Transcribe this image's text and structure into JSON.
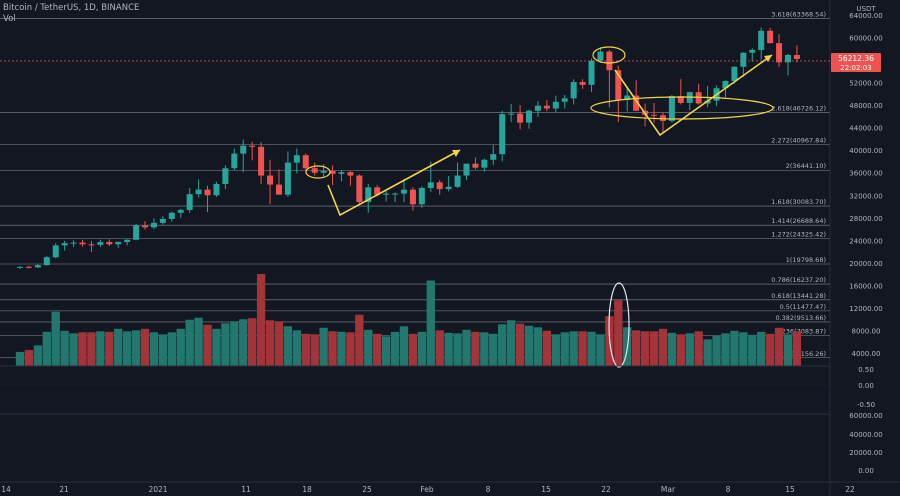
{
  "header": {
    "title": "Bitcoin / TetherUS, 1D, BINANCE",
    "volume_label": "Vol",
    "currency": "USDT"
  },
  "price": {
    "last": "56212.36",
    "countdown": "22:02:03"
  },
  "colors": {
    "background": "#131722",
    "up": "#26a69a",
    "down": "#ef5350",
    "fib_line": "#9598a1",
    "annotation": "#f5d445",
    "volume_up": "#22786f",
    "volume_down": "#a3353a"
  },
  "chart_data": {
    "type": "candlestick",
    "title": "Bitcoin / TetherUS, 1D, BINANCE",
    "x_tick_labels": [
      "14",
      "21",
      "2021",
      "11",
      "18",
      "25",
      "Feb",
      "8",
      "15",
      "22",
      "Mar",
      "8",
      "15",
      "22"
    ],
    "price_axis": {
      "ticks": [
        4000,
        8000,
        12000,
        16000,
        20000,
        24000,
        28000,
        32000,
        36000,
        40000,
        44000,
        48000,
        52000,
        60000,
        64000
      ],
      "tick_labels": [
        "4000.00",
        "8000.00",
        "12000.00",
        "16000.00",
        "20000.00",
        "24000.00",
        "28000.00",
        "32000.00",
        "36000.00",
        "40000.00",
        "44000.00",
        "48000.00",
        "52000.00",
        "60000.00",
        "64000.00"
      ],
      "range": [
        2500,
        65500
      ],
      "grid": false
    },
    "fib_levels": [
      {
        "ratio": "3.618",
        "value": 63368.54
      },
      {
        "ratio": "2.618",
        "value": 46726.12
      },
      {
        "ratio": "2.272",
        "value": 40967.84
      },
      {
        "ratio": "2",
        "value": 36441.1
      },
      {
        "ratio": "1.618",
        "value": 30083.7
      },
      {
        "ratio": "1.414",
        "value": 26688.64
      },
      {
        "ratio": "1.272",
        "value": 24325.42
      },
      {
        "ratio": "1",
        "value": 19798.68
      },
      {
        "ratio": "0.786",
        "value": 16237.2
      },
      {
        "ratio": "0.618",
        "value": 13441.28
      },
      {
        "ratio": "0.5",
        "value": 11477.47
      },
      {
        "ratio": "0.382",
        "value": 9513.66
      },
      {
        "ratio": "0.236",
        "value": 7083.87
      },
      {
        "ratio": "0",
        "value": 3156.26
      }
    ],
    "candles": [
      [
        19150,
        19400,
        18900,
        19300
      ],
      [
        19300,
        19500,
        19000,
        19200
      ],
      [
        19200,
        19800,
        19100,
        19600
      ],
      [
        19600,
        21200,
        19500,
        21000
      ],
      [
        21000,
        23500,
        20800,
        23100
      ],
      [
        23100,
        23900,
        22200,
        23500
      ],
      [
        23500,
        24000,
        22800,
        23600
      ],
      [
        23600,
        24100,
        22900,
        23300
      ],
      [
        23300,
        23900,
        21900,
        23200
      ],
      [
        23200,
        24100,
        22800,
        23700
      ],
      [
        23700,
        24200,
        23000,
        23300
      ],
      [
        23300,
        23800,
        22700,
        23700
      ],
      [
        23700,
        24200,
        23100,
        24100
      ],
      [
        24100,
        26900,
        24000,
        26600
      ],
      [
        26600,
        27400,
        25900,
        26300
      ],
      [
        26300,
        27900,
        26000,
        27100
      ],
      [
        27100,
        28300,
        26800,
        27800
      ],
      [
        27800,
        29100,
        27300,
        28900
      ],
      [
        28900,
        29600,
        28000,
        29400
      ],
      [
        29400,
        33300,
        28900,
        32200
      ],
      [
        32200,
        34800,
        31600,
        33000
      ],
      [
        33000,
        33700,
        29000,
        32000
      ],
      [
        32000,
        34400,
        31700,
        34000
      ],
      [
        34000,
        37300,
        33100,
        36800
      ],
      [
        36800,
        40300,
        36400,
        39400
      ],
      [
        39400,
        41900,
        36100,
        40800
      ],
      [
        40800,
        41500,
        38200,
        40600
      ],
      [
        40600,
        41400,
        34000,
        35500
      ],
      [
        35500,
        38300,
        30400,
        33900
      ],
      [
        33900,
        36600,
        32500,
        32100
      ],
      [
        32100,
        39800,
        31700,
        37800
      ],
      [
        37800,
        40300,
        35900,
        39100
      ],
      [
        39100,
        39400,
        36300,
        36800
      ],
      [
        36800,
        37800,
        35500,
        36000
      ],
      [
        36000,
        37500,
        35300,
        36300
      ],
      [
        36300,
        37300,
        33800,
        35800
      ],
      [
        35800,
        36500,
        34500,
        36100
      ],
      [
        36100,
        36300,
        33700,
        35500
      ],
      [
        35500,
        35700,
        30300,
        30800
      ],
      [
        30800,
        34000,
        28900,
        33400
      ],
      [
        33400,
        33800,
        31800,
        32100
      ],
      [
        32100,
        33000,
        30900,
        32300
      ],
      [
        32300,
        32500,
        30800,
        32300
      ],
      [
        32300,
        34900,
        30800,
        33000
      ],
      [
        33000,
        33400,
        29300,
        30400
      ],
      [
        30400,
        33600,
        29800,
        33300
      ],
      [
        33300,
        38000,
        32600,
        34300
      ],
      [
        34300,
        34700,
        32100,
        33100
      ],
      [
        33100,
        35400,
        32700,
        33500
      ],
      [
        33500,
        37800,
        33300,
        35500
      ],
      [
        35500,
        37600,
        34700,
        37600
      ],
      [
        37600,
        38700,
        36600,
        36900
      ],
      [
        36900,
        38500,
        36200,
        38300
      ],
      [
        38300,
        40900,
        37400,
        39300
      ],
      [
        39300,
        47000,
        38000,
        46400
      ],
      [
        46400,
        48200,
        45000,
        46500
      ],
      [
        46500,
        48000,
        43700,
        44900
      ],
      [
        44900,
        47200,
        43800,
        47000
      ],
      [
        47000,
        48700,
        45900,
        47900
      ],
      [
        47900,
        48900,
        46900,
        47400
      ],
      [
        47400,
        49700,
        46800,
        48600
      ],
      [
        48600,
        49800,
        47400,
        49200
      ],
      [
        49200,
        52600,
        48100,
        52100
      ],
      [
        52100,
        52600,
        50900,
        51600
      ],
      [
        51600,
        56300,
        50300,
        55900
      ],
      [
        55900,
        58300,
        55500,
        57500
      ],
      [
        57500,
        57800,
        47600,
        54200
      ],
      [
        54200,
        55000,
        45000,
        48900
      ],
      [
        48900,
        51300,
        46900,
        49700
      ],
      [
        49700,
        52400,
        47000,
        47000
      ],
      [
        47000,
        48300,
        44200,
        46300
      ],
      [
        46300,
        48400,
        44900,
        46200
      ],
      [
        46200,
        46600,
        43000,
        45200
      ],
      [
        45200,
        49800,
        44900,
        49600
      ],
      [
        49600,
        52600,
        48100,
        48400
      ],
      [
        48400,
        50400,
        47100,
        50300
      ],
      [
        50300,
        51800,
        48100,
        48300
      ],
      [
        48300,
        51400,
        47600,
        48800
      ],
      [
        48800,
        51500,
        47800,
        51000
      ],
      [
        51000,
        52400,
        49400,
        52300
      ],
      [
        52300,
        54900,
        51800,
        54800
      ],
      [
        54800,
        57400,
        53000,
        57300
      ],
      [
        57300,
        58100,
        55800,
        57800
      ],
      [
        57800,
        61800,
        56100,
        61200
      ],
      [
        61200,
        61700,
        59000,
        59000
      ],
      [
        59000,
        60600,
        54800,
        55600
      ],
      [
        55600,
        57100,
        53300,
        56900
      ],
      [
        56900,
        58600,
        55600,
        56200
      ]
    ],
    "volume_axis": {
      "ticks": [
        4000,
        8000,
        12000,
        16000
      ],
      "tick_labels": [
        "4000.00",
        "8000.00",
        "12000.00",
        "16000.00"
      ],
      "range": [
        0,
        20000
      ]
    },
    "volume": [
      2800,
      3200,
      4100,
      6800,
      10800,
      7000,
      6500,
      6700,
      6700,
      6900,
      6800,
      7400,
      6900,
      7100,
      7400,
      6700,
      6300,
      6700,
      7400,
      9200,
      9600,
      8200,
      7400,
      8500,
      8900,
      9300,
      9500,
      18300,
      9100,
      8900,
      7900,
      7100,
      6400,
      6300,
      7600,
      6900,
      6800,
      6700,
      10200,
      7200,
      6400,
      5900,
      6800,
      7900,
      6400,
      6800,
      17000,
      7100,
      6600,
      6500,
      7200,
      6800,
      6700,
      6400,
      8300,
      9100,
      8400,
      8000,
      7700,
      7000,
      6300,
      6700,
      6900,
      6900,
      6800,
      6300,
      9900,
      13100,
      7700,
      7100,
      6900,
      6900,
      7400,
      6600,
      6300,
      6500,
      6900,
      5300,
      6100,
      6500,
      7000,
      6700,
      6200,
      6800,
      6400,
      7600,
      6300,
      6900
    ],
    "osc_labels": [
      "0.50",
      "0.00",
      "-0.50"
    ],
    "lower_labels": [
      "60000.00",
      "40000.00",
      "20000.00",
      "0.00"
    ]
  }
}
